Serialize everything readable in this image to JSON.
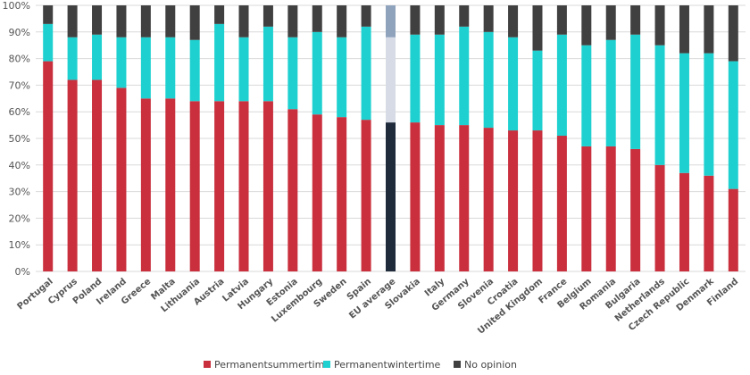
{
  "chart_data": {
    "type": "bar",
    "stacked": true,
    "percent": true,
    "title": "",
    "xlabel": "",
    "ylabel": "",
    "ylim": [
      0,
      100
    ],
    "yticks": [
      "0%",
      "10%",
      "20%",
      "30%",
      "40%",
      "50%",
      "60%",
      "70%",
      "80%",
      "90%",
      "100%"
    ],
    "grid": true,
    "legend": "bottom",
    "categories": [
      "Portugal",
      "Cyprus",
      "Poland",
      "Ireland",
      "Greece",
      "Malta",
      "Lithuania",
      "Austria",
      "Latvia",
      "Hungary",
      "Estonia",
      "Luxembourg",
      "Sweden",
      "Spain",
      "EU average",
      "Slovakia",
      "Italy",
      "Germany",
      "Slovenia",
      "Croatia",
      "United Kingdom",
      "France",
      "Belgium",
      "Romania",
      "Bulgaria",
      "Netherlands",
      "Czech Republic",
      "Denmark",
      "Finland"
    ],
    "highlight_category": "EU average",
    "series": [
      {
        "name": "Permanentsummertime",
        "color": "#c92f3d",
        "highlight_color": "#1f2a3a",
        "values": [
          79,
          72,
          72,
          69,
          65,
          65,
          64,
          64,
          64,
          64,
          61,
          59,
          58,
          57,
          56,
          56,
          55,
          55,
          54,
          53,
          53,
          51,
          47,
          47,
          46,
          40,
          37,
          36,
          31
        ]
      },
      {
        "name": "Permanentwintertime",
        "color": "#1ed1d0",
        "highlight_color": "#d6dbe5",
        "values": [
          14,
          16,
          17,
          19,
          23,
          23,
          23,
          29,
          24,
          28,
          27,
          31,
          30,
          35,
          32,
          33,
          34,
          37,
          36,
          35,
          30,
          38,
          38,
          40,
          43,
          45,
          45,
          46,
          48
        ]
      },
      {
        "name": "No opinion",
        "color": "#404040",
        "highlight_color": "#8fa3bd",
        "values": [
          7,
          12,
          11,
          12,
          12,
          12,
          13,
          7,
          12,
          8,
          12,
          10,
          12,
          8,
          12,
          11,
          11,
          8,
          10,
          12,
          17,
          11,
          15,
          13,
          11,
          15,
          18,
          18,
          21
        ]
      }
    ]
  }
}
